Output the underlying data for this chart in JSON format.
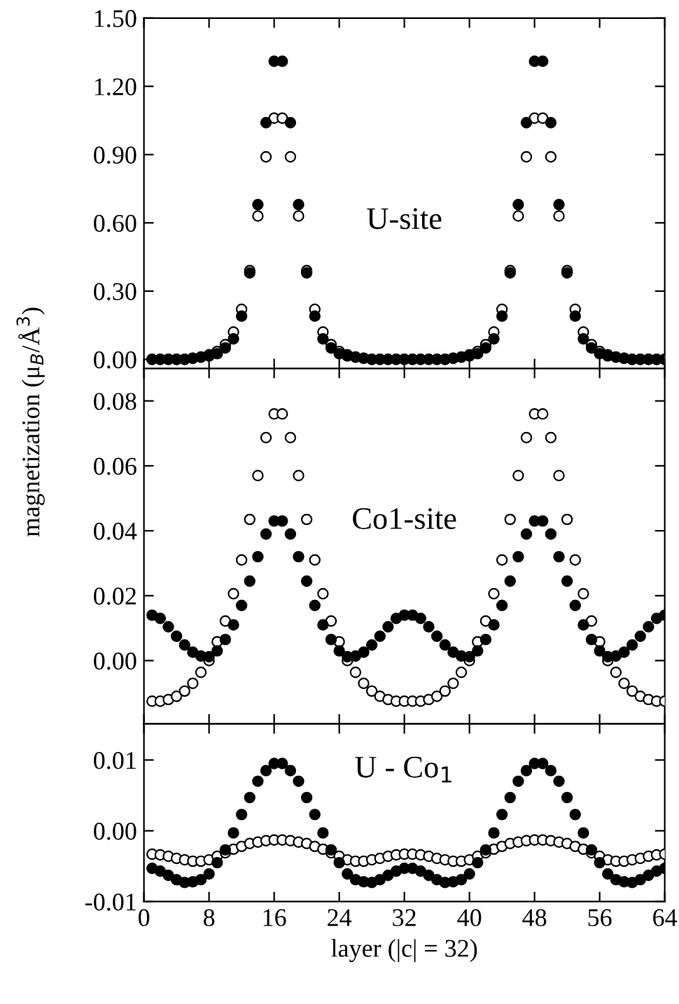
{
  "chart_data": [
    {
      "type": "scatter",
      "annotations": [
        "U-site"
      ],
      "marker": "circle",
      "grid": false,
      "tick_labels": "y",
      "x": [
        1,
        2,
        3,
        4,
        5,
        6,
        7,
        8,
        9,
        10,
        11,
        12,
        13,
        14,
        15,
        16,
        17,
        18,
        19,
        20,
        21,
        22,
        23,
        24,
        25,
        26,
        27,
        28,
        29,
        30,
        31,
        32,
        33,
        34,
        35,
        36,
        37,
        38,
        39,
        40,
        41,
        42,
        43,
        44,
        45,
        46,
        47,
        48,
        49,
        50,
        51,
        52,
        53,
        54,
        55,
        56,
        57,
        58,
        59,
        60,
        61,
        62,
        63,
        64
      ],
      "xlim": [
        0,
        64
      ],
      "xticks": [
        0,
        8,
        16,
        24,
        32,
        40,
        48,
        56,
        64
      ],
      "ylim": [
        -0.04,
        1.5
      ],
      "yticks": [
        {
          "value": 0,
          "label": "0.00"
        },
        {
          "value": 0.3,
          "label": "0.30"
        },
        {
          "value": 0.6,
          "label": "0.60"
        },
        {
          "value": 0.9,
          "label": "0.90"
        },
        {
          "value": 1.2,
          "label": "1.20"
        },
        {
          "value": 1.5,
          "label": "1.50"
        }
      ],
      "series": [
        {
          "color": "#ffffff",
          "values": [
            0,
            0,
            0,
            0,
            0,
            0.005,
            0.01,
            0.02,
            0.035,
            0.065,
            0.12,
            0.22,
            0.39,
            0.63,
            0.89,
            1.06,
            1.06,
            0.89,
            0.63,
            0.39,
            0.22,
            0.12,
            0.065,
            0.035,
            0.02,
            0.01,
            0.005,
            0,
            0,
            0,
            0,
            0,
            0,
            0,
            0,
            0,
            0,
            0.005,
            0.01,
            0.02,
            0.035,
            0.065,
            0.12,
            0.22,
            0.39,
            0.63,
            0.89,
            1.06,
            1.06,
            0.89,
            0.63,
            0.39,
            0.22,
            0.12,
            0.065,
            0.035,
            0.02,
            0.01,
            0.005,
            0,
            0,
            0,
            0,
            0
          ]
        },
        {
          "color": "#000000",
          "values": [
            0,
            0,
            0,
            0,
            0,
            0.005,
            0.01,
            0.015,
            0.025,
            0.05,
            0.09,
            0.19,
            0.38,
            0.68,
            1.04,
            1.31,
            1.31,
            1.04,
            0.68,
            0.38,
            0.19,
            0.09,
            0.05,
            0.025,
            0.015,
            0.01,
            0.005,
            0,
            0,
            0,
            0,
            0,
            0,
            0,
            0,
            0,
            0,
            0.005,
            0.01,
            0.015,
            0.025,
            0.05,
            0.09,
            0.19,
            0.38,
            0.68,
            1.04,
            1.31,
            1.31,
            1.04,
            0.68,
            0.38,
            0.19,
            0.09,
            0.05,
            0.025,
            0.015,
            0.01,
            0.005,
            0,
            0,
            0,
            0,
            0
          ]
        }
      ]
    },
    {
      "type": "scatter",
      "annotations": [
        "Co1-site"
      ],
      "ylabel": "magnetization (μ$_{B}$/Å$^{3}$)",
      "marker": "circle",
      "grid": false,
      "tick_labels": "y",
      "x": [
        1,
        2,
        3,
        4,
        5,
        6,
        7,
        8,
        9,
        10,
        11,
        12,
        13,
        14,
        15,
        16,
        17,
        18,
        19,
        20,
        21,
        22,
        23,
        24,
        25,
        26,
        27,
        28,
        29,
        30,
        31,
        32,
        33,
        34,
        35,
        36,
        37,
        38,
        39,
        40,
        41,
        42,
        43,
        44,
        45,
        46,
        47,
        48,
        49,
        50,
        51,
        52,
        53,
        54,
        55,
        56,
        57,
        58,
        59,
        60,
        61,
        62,
        63,
        64
      ],
      "xlim": [
        0,
        64
      ],
      "xticks": [
        0,
        8,
        16,
        24,
        32,
        40,
        48,
        56,
        64
      ],
      "ylim": [
        -0.0195,
        0.09
      ],
      "yticks": [
        {
          "value": 0,
          "label": "0.00"
        },
        {
          "value": 0.02,
          "label": "0.02"
        },
        {
          "value": 0.04,
          "label": "0.04"
        },
        {
          "value": 0.06,
          "label": "0.06"
        },
        {
          "value": 0.08,
          "label": "0.08"
        }
      ],
      "series": [
        {
          "color": "#ffffff",
          "values": [
            -0.0125,
            -0.0125,
            -0.012,
            -0.011,
            -0.0094,
            -0.007,
            -0.0036,
            0.0,
            0.0058,
            0.0122,
            0.0206,
            0.031,
            0.0435,
            0.057,
            0.0687,
            0.076,
            0.076,
            0.0687,
            0.057,
            0.0435,
            0.031,
            0.0206,
            0.0122,
            0.0058,
            0.0,
            -0.0036,
            -0.007,
            -0.0094,
            -0.011,
            -0.012,
            -0.0125,
            -0.0125,
            -0.0125,
            -0.0125,
            -0.012,
            -0.011,
            -0.0094,
            -0.007,
            -0.0036,
            0.0,
            0.0058,
            0.0122,
            0.0206,
            0.031,
            0.0435,
            0.057,
            0.0687,
            0.076,
            0.076,
            0.0687,
            0.057,
            0.0435,
            0.031,
            0.0206,
            0.0122,
            0.0058,
            0.0,
            -0.0036,
            -0.007,
            -0.0094,
            -0.011,
            -0.012,
            -0.0125,
            -0.0125
          ]
        },
        {
          "color": "#000000",
          "values": [
            0.014,
            0.013,
            0.0104,
            0.0075,
            0.0048,
            0.0026,
            0.0014,
            0.0012,
            0.003,
            0.0065,
            0.011,
            0.017,
            0.0245,
            0.032,
            0.039,
            0.043,
            0.043,
            0.039,
            0.032,
            0.0245,
            0.017,
            0.011,
            0.0065,
            0.003,
            0.0012,
            0.0014,
            0.0026,
            0.0048,
            0.0075,
            0.0104,
            0.013,
            0.014,
            0.014,
            0.013,
            0.0104,
            0.0075,
            0.0048,
            0.0026,
            0.0014,
            0.0012,
            0.003,
            0.0065,
            0.011,
            0.017,
            0.0245,
            0.032,
            0.039,
            0.043,
            0.043,
            0.039,
            0.032,
            0.0245,
            0.017,
            0.011,
            0.0065,
            0.003,
            0.0012,
            0.0014,
            0.0026,
            0.0048,
            0.0075,
            0.0104,
            0.013,
            0.014
          ]
        }
      ]
    },
    {
      "type": "scatter",
      "annotations": [
        "U - Co$_{1}$"
      ],
      "xlabel": "layer (|c| = 32)",
      "marker": "circle",
      "grid": false,
      "x": [
        1,
        2,
        3,
        4,
        5,
        6,
        7,
        8,
        9,
        10,
        11,
        12,
        13,
        14,
        15,
        16,
        17,
        18,
        19,
        20,
        21,
        22,
        23,
        24,
        25,
        26,
        27,
        28,
        29,
        30,
        31,
        32,
        33,
        34,
        35,
        36,
        37,
        38,
        39,
        40,
        41,
        42,
        43,
        44,
        45,
        46,
        47,
        48,
        49,
        50,
        51,
        52,
        53,
        54,
        55,
        56,
        57,
        58,
        59,
        60,
        61,
        62,
        63,
        64
      ],
      "xlim": [
        0,
        64
      ],
      "xticks": [
        0,
        8,
        16,
        24,
        32,
        40,
        48,
        56,
        64
      ],
      "ylim": [
        -0.01,
        0.0151
      ],
      "yticks": [
        {
          "value": -0.01,
          "label": "-0.01"
        },
        {
          "value": 0,
          "label": "0.00"
        },
        {
          "value": 0.01,
          "label": "0.01"
        }
      ],
      "series": [
        {
          "color": "#ffffff",
          "values": [
            -0.0033,
            -0.0034,
            -0.0036,
            -0.0039,
            -0.0041,
            -0.0043,
            -0.0043,
            -0.0041,
            -0.0036,
            -0.0031,
            -0.0026,
            -0.0022,
            -0.0018,
            -0.0016,
            -0.0014,
            -0.0013,
            -0.0013,
            -0.0014,
            -0.0016,
            -0.0018,
            -0.0022,
            -0.0026,
            -0.0031,
            -0.0036,
            -0.0041,
            -0.0043,
            -0.0043,
            -0.0041,
            -0.0039,
            -0.0036,
            -0.0034,
            -0.0033,
            -0.0033,
            -0.0034,
            -0.0036,
            -0.0039,
            -0.0041,
            -0.0043,
            -0.0043,
            -0.0041,
            -0.0036,
            -0.0031,
            -0.0026,
            -0.0022,
            -0.0018,
            -0.0016,
            -0.0014,
            -0.0013,
            -0.0013,
            -0.0014,
            -0.0016,
            -0.0018,
            -0.0022,
            -0.0026,
            -0.0031,
            -0.0036,
            -0.0041,
            -0.0043,
            -0.0043,
            -0.0041,
            -0.0039,
            -0.0036,
            -0.0034,
            -0.0033
          ]
        },
        {
          "color": "#000000",
          "values": [
            -0.0053,
            -0.0057,
            -0.0063,
            -0.0069,
            -0.0073,
            -0.0072,
            -0.0069,
            -0.0061,
            -0.0045,
            -0.0027,
            -0.0003,
            0.0023,
            0.0047,
            0.007,
            0.0085,
            0.0095,
            0.0095,
            0.0085,
            0.007,
            0.0047,
            0.0023,
            -0.0003,
            -0.0027,
            -0.0045,
            -0.0061,
            -0.0069,
            -0.0072,
            -0.0073,
            -0.0069,
            -0.0063,
            -0.0057,
            -0.0053,
            -0.0053,
            -0.0057,
            -0.0063,
            -0.0069,
            -0.0073,
            -0.0072,
            -0.0069,
            -0.0061,
            -0.0045,
            -0.0027,
            -0.0003,
            0.0023,
            0.0047,
            0.007,
            0.0085,
            0.0095,
            0.0095,
            0.0085,
            0.007,
            0.0047,
            0.0023,
            -0.0003,
            -0.0027,
            -0.0045,
            -0.0061,
            -0.0069,
            -0.0072,
            -0.0073,
            -0.0069,
            -0.0063,
            -0.0057,
            -0.0053
          ]
        }
      ]
    }
  ]
}
